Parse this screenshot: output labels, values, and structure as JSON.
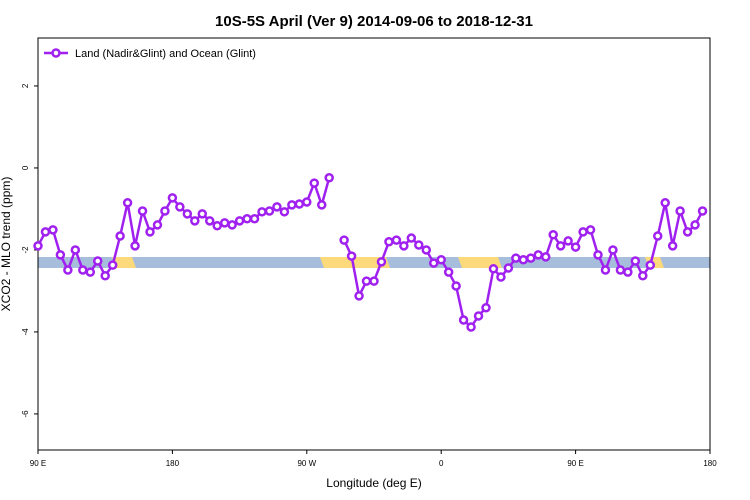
{
  "chart_data": {
    "type": "line",
    "title": "10S-5S April (Ver 9)   2014-09-06 to 2018-12-31",
    "x_label": "Longitude (deg E)",
    "y_label": "XCO2 - MLO trend (ppm)",
    "xlim": [
      90,
      540
    ],
    "xticks": [
      {
        "value": 90,
        "label": "90 E"
      },
      {
        "value": 180,
        "label": "180"
      },
      {
        "value": 270,
        "label": "90 W"
      },
      {
        "value": 360,
        "label": "0"
      },
      {
        "value": 450,
        "label": "90 E"
      },
      {
        "value": 540,
        "label": "180"
      }
    ],
    "ylim": [
      -6.88,
      3.17
    ],
    "yticks": [
      -6,
      -4,
      -2,
      0,
      2
    ],
    "legend": "top-left",
    "x": [
      90,
      95,
      100,
      105,
      110,
      115,
      120,
      125,
      130,
      135,
      140,
      145,
      150,
      155,
      160,
      165,
      170,
      175,
      180,
      185,
      190,
      195,
      200,
      205,
      210,
      215,
      220,
      225,
      230,
      235,
      240,
      245,
      250,
      255,
      260,
      265,
      270,
      275,
      280,
      285,
      290,
      295,
      300,
      305,
      310,
      315,
      320,
      325,
      330,
      335,
      340,
      345,
      350,
      355,
      360,
      365,
      370,
      375,
      380,
      385,
      390,
      395,
      400,
      405,
      410,
      415,
      420,
      425,
      430,
      435,
      440,
      445,
      450,
      455,
      460,
      465,
      470,
      475,
      480,
      485,
      490,
      495,
      500,
      505,
      510,
      515,
      520,
      525,
      530,
      535
    ],
    "series": [
      {
        "name": "Land (Nadir&Glint) and Ocean (Glint)",
        "color": "#a020f0",
        "values": [
          -1.9,
          -1.56,
          -1.51,
          -2.12,
          -2.49,
          -2.0,
          -2.49,
          -2.54,
          -2.27,
          -2.63,
          -2.37,
          -1.66,
          -0.85,
          -1.9,
          -1.05,
          -1.56,
          -1.39,
          -1.05,
          -0.73,
          -0.95,
          -1.12,
          -1.29,
          -1.12,
          -1.29,
          -1.41,
          -1.34,
          -1.39,
          -1.29,
          -1.24,
          -1.24,
          -1.07,
          -1.05,
          -0.95,
          -1.07,
          -0.9,
          -0.88,
          -0.83,
          -0.37,
          -0.9,
          -0.24,
          null,
          -1.76,
          -2.15,
          -3.12,
          -2.76,
          -2.76,
          -2.29,
          -1.8,
          -1.76,
          -1.9,
          -1.71,
          -1.88,
          -2.0,
          -2.32,
          -2.24,
          -2.54,
          -2.88,
          -3.71,
          -3.88,
          -3.61,
          -3.41,
          -2.46,
          -2.66,
          -2.44,
          -2.2,
          -2.24,
          -2.2,
          -2.12,
          -2.17,
          -1.63,
          -1.9,
          -1.78,
          -1.93,
          -1.56,
          -1.51,
          -2.12,
          -2.49,
          -2.0,
          -2.49,
          -2.54,
          -2.27,
          -2.63,
          -2.37,
          -1.66,
          -0.85,
          -1.9,
          -1.05,
          -1.56,
          -1.39,
          -1.05
        ]
      }
    ]
  }
}
